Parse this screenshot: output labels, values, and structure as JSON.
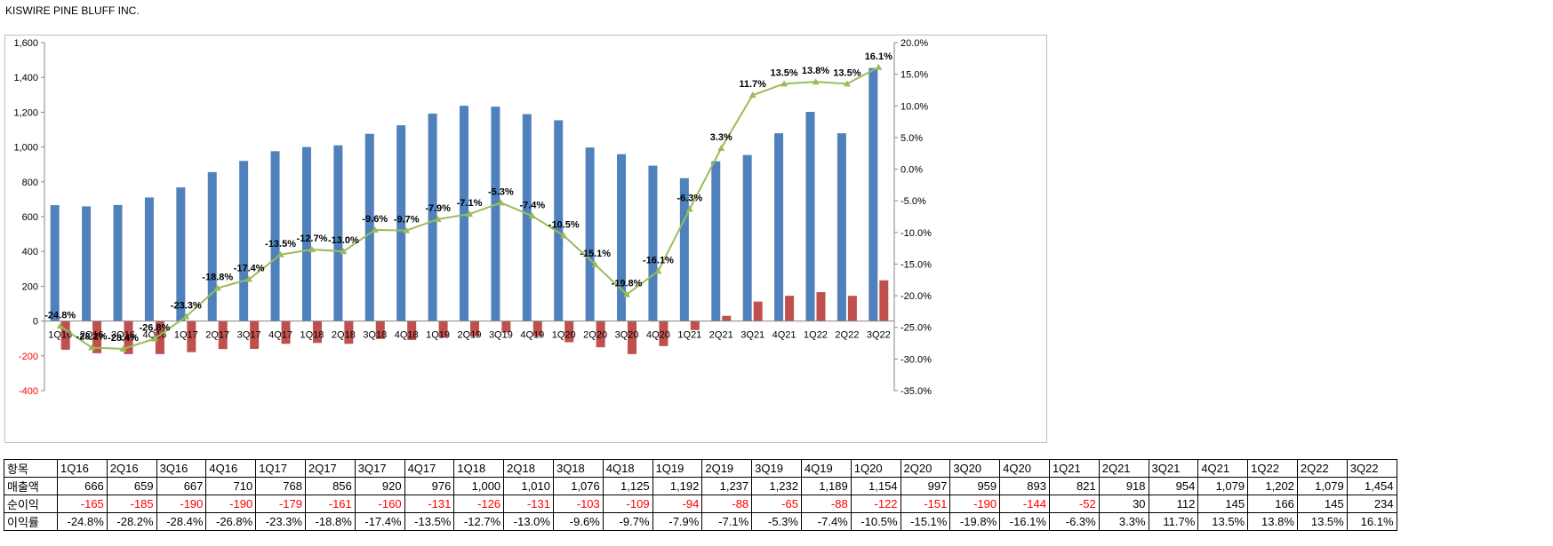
{
  "title": "KISWIRE PINE BLUFF INC.",
  "colors": {
    "revenue": "#4f81bd",
    "net_income": "#c0504d",
    "margin": "#9bbb59",
    "negative_text": "#ff0000"
  },
  "chart_data": {
    "type": "bar",
    "categories": [
      "1Q16",
      "2Q16",
      "3Q16",
      "4Q16",
      "1Q17",
      "2Q17",
      "3Q17",
      "4Q17",
      "1Q18",
      "2Q18",
      "3Q18",
      "4Q18",
      "1Q19",
      "2Q19",
      "3Q19",
      "4Q19",
      "1Q20",
      "2Q20",
      "3Q20",
      "4Q20",
      "1Q21",
      "2Q21",
      "3Q21",
      "4Q21",
      "1Q22",
      "2Q22",
      "3Q22"
    ],
    "series": [
      {
        "name": "매출액",
        "type": "bar",
        "axis": "left",
        "values": [
          666,
          659,
          667,
          710,
          768,
          856,
          920,
          976,
          1000,
          1010,
          1076,
          1125,
          1192,
          1237,
          1232,
          1189,
          1154,
          997,
          959,
          893,
          821,
          918,
          954,
          1079,
          1202,
          1079,
          1454
        ]
      },
      {
        "name": "순이익",
        "type": "bar",
        "axis": "left",
        "values": [
          -165,
          -185,
          -190,
          -190,
          -179,
          -161,
          -160,
          -131,
          -126,
          -131,
          -103,
          -109,
          -94,
          -88,
          -65,
          -88,
          -122,
          -151,
          -190,
          -144,
          -52,
          30,
          112,
          145,
          166,
          145,
          234
        ]
      },
      {
        "name": "이익률",
        "type": "line",
        "axis": "right",
        "unit": "%",
        "values": [
          -24.8,
          -28.2,
          -28.4,
          -26.8,
          -23.3,
          -18.8,
          -17.4,
          -13.5,
          -12.7,
          -13.0,
          -9.6,
          -9.7,
          -7.9,
          -7.1,
          -5.3,
          -7.4,
          -10.5,
          -15.1,
          -19.8,
          -16.1,
          -6.3,
          3.3,
          11.7,
          13.5,
          13.8,
          13.5,
          16.1
        ]
      }
    ],
    "y_left": {
      "min": -400,
      "max": 1600,
      "ticks": [
        "-400",
        "-200",
        "0",
        "200",
        "400",
        "600",
        "800",
        "1,000",
        "1,200",
        "1,400",
        "1,600"
      ]
    },
    "y_right": {
      "min": -35,
      "max": 20,
      "ticks": [
        "-35.0%",
        "-30.0%",
        "-25.0%",
        "-20.0%",
        "-15.0%",
        "-10.0%",
        "-5.0%",
        "0.0%",
        "5.0%",
        "10.0%",
        "15.0%",
        "20.0%"
      ]
    },
    "point_labels": [
      "-24.8%",
      "-28.2%",
      "-28.4%",
      "-26.8%",
      "-23.3%",
      "-18.8%",
      "-17.4%",
      "-13.5%",
      "-12.7%",
      "-13.0%",
      "-9.6%",
      "-9.7%",
      "-7.9%",
      "-7.1%",
      "-5.3%",
      "-7.4%",
      "-10.5%",
      "-15.1%",
      "-19.8%",
      "-16.1%",
      "-6.3%",
      "3.3%",
      "11.7%",
      "13.5%",
      "13.8%",
      "13.5%",
      "16.1%"
    ],
    "grid": false,
    "legend": "none"
  },
  "table": {
    "header_label": "항목",
    "rows": [
      {
        "label": "매출액",
        "cells": [
          "666",
          "659",
          "667",
          "710",
          "768",
          "856",
          "920",
          "976",
          "1,000",
          "1,010",
          "1,076",
          "1,125",
          "1,192",
          "1,237",
          "1,232",
          "1,189",
          "1,154",
          "997",
          "959",
          "893",
          "821",
          "918",
          "954",
          "1,079",
          "1,202",
          "1,079",
          "1,454"
        ]
      },
      {
        "label": "순이익",
        "cells": [
          "-165",
          "-185",
          "-190",
          "-190",
          "-179",
          "-161",
          "-160",
          "-131",
          "-126",
          "-131",
          "-103",
          "-109",
          "-94",
          "-88",
          "-65",
          "-88",
          "-122",
          "-151",
          "-190",
          "-144",
          "-52",
          "30",
          "112",
          "145",
          "166",
          "145",
          "234"
        ]
      },
      {
        "label": "이익률",
        "cells": [
          "-24.8%",
          "-28.2%",
          "-28.4%",
          "-26.8%",
          "-23.3%",
          "-18.8%",
          "-17.4%",
          "-13.5%",
          "-12.7%",
          "-13.0%",
          "-9.6%",
          "-9.7%",
          "-7.9%",
          "-7.1%",
          "-5.3%",
          "-7.4%",
          "-10.5%",
          "-15.1%",
          "-19.8%",
          "-16.1%",
          "-6.3%",
          "3.3%",
          "11.7%",
          "13.5%",
          "13.8%",
          "13.5%",
          "16.1%"
        ]
      }
    ]
  }
}
